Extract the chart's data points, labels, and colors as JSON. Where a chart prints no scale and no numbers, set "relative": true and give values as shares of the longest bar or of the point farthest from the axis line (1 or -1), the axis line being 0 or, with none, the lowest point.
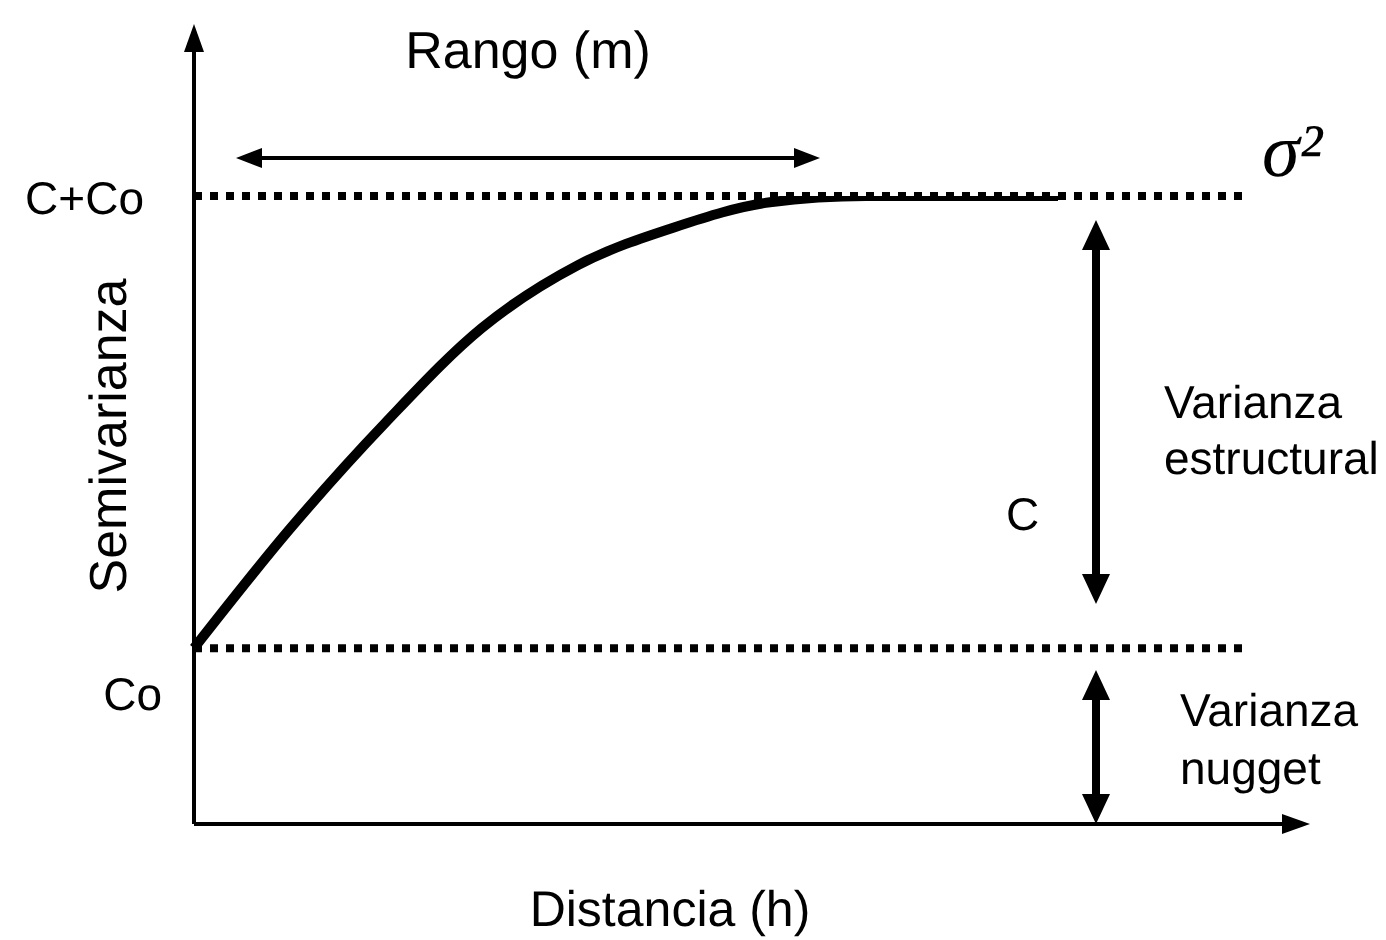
{
  "chart_data": {
    "type": "line",
    "xlabel": "Distancia (h)",
    "ylabel": "Semivarianza",
    "relative": true,
    "categories": [
      null,
      null,
      null,
      null,
      null,
      null,
      null,
      null,
      null,
      null,
      null,
      null
    ],
    "series": [
      {
        "color": "#000000",
        "values": [
          0.28,
          0.47,
          0.64,
          0.79,
          0.89,
          0.95,
          0.99,
          1,
          1,
          1,
          null,
          null
        ]
      }
    ],
    "ref_lines": [
      {
        "axis": "y",
        "value": 0.28,
        "label": "Co",
        "line_style": "dotted",
        "color": "#000000"
      },
      {
        "axis": "y",
        "value": 1,
        "label": "C+Co",
        "line_style": "dotted",
        "color": "#000000"
      }
    ],
    "annotations": [
      "Rango (m)",
      "σ²",
      "C",
      "Varianza estructural",
      "Varianza nugget"
    ]
  }
}
